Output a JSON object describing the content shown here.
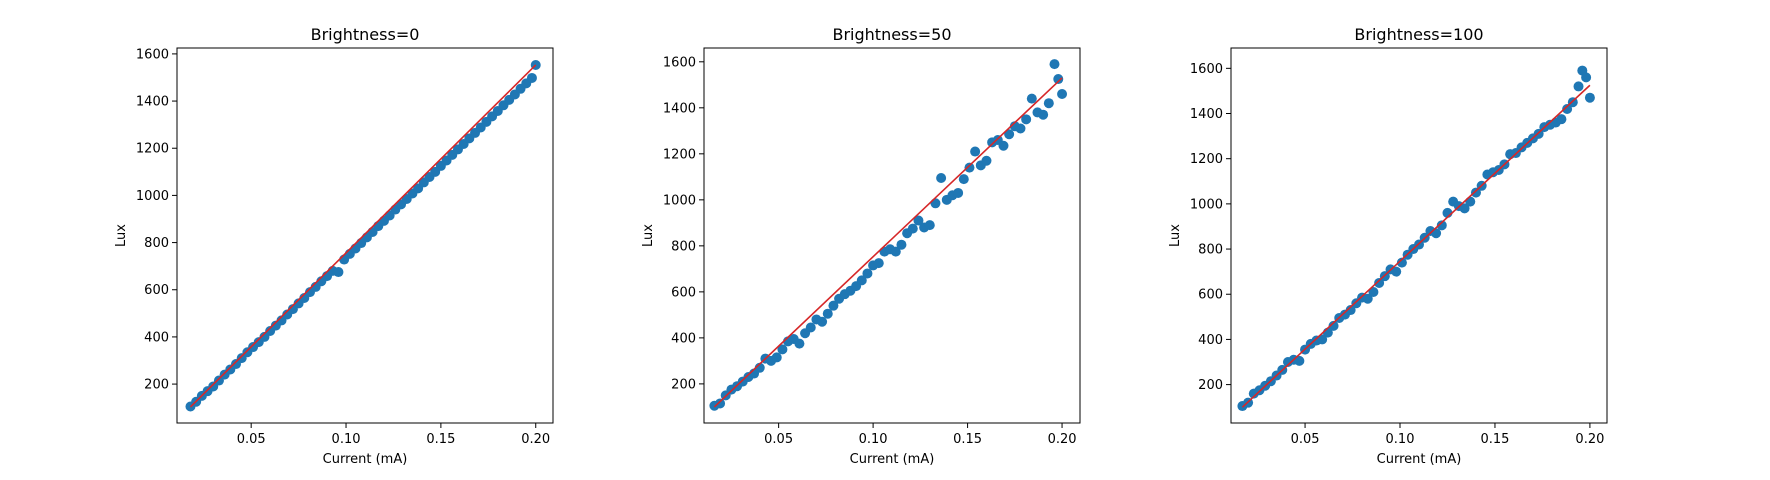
{
  "chart_data": [
    {
      "type": "scatter",
      "title": "Brightness=0",
      "xlabel": "Current (mA)",
      "ylabel": "Lux",
      "xlim": [
        0.0109,
        0.2091
      ],
      "ylim": [
        35,
        1625
      ],
      "xticks": [
        0.05,
        0.1,
        0.15,
        0.2
      ],
      "xtick_labels": [
        "0.05",
        "0.10",
        "0.15",
        "0.20"
      ],
      "yticks": [
        200,
        400,
        600,
        800,
        1000,
        1200,
        1400,
        1600
      ],
      "ytick_labels": [
        "200",
        "400",
        "600",
        "800",
        "1000",
        "1200",
        "1400",
        "1600"
      ],
      "fit_line": {
        "color": "#d62728",
        "x": [
          0.018,
          0.2
        ],
        "y": [
          103,
          1553
        ]
      },
      "series": [
        {
          "name": "measurements",
          "color": "#1f77b4",
          "x": [
            0.018,
            0.021,
            0.024,
            0.027,
            0.03,
            0.033,
            0.036,
            0.039,
            0.042,
            0.045,
            0.048,
            0.051,
            0.054,
            0.057,
            0.06,
            0.063,
            0.066,
            0.069,
            0.072,
            0.075,
            0.078,
            0.081,
            0.084,
            0.087,
            0.09,
            0.093,
            0.096,
            0.099,
            0.102,
            0.105,
            0.108,
            0.111,
            0.114,
            0.117,
            0.12,
            0.123,
            0.126,
            0.129,
            0.132,
            0.135,
            0.138,
            0.141,
            0.144,
            0.147,
            0.15,
            0.153,
            0.156,
            0.159,
            0.162,
            0.165,
            0.168,
            0.171,
            0.174,
            0.177,
            0.18,
            0.183,
            0.186,
            0.189,
            0.192,
            0.195,
            0.198,
            0.2
          ],
          "y": [
            105,
            125,
            150,
            170,
            190,
            215,
            240,
            262,
            285,
            310,
            335,
            357,
            378,
            400,
            425,
            448,
            470,
            495,
            518,
            542,
            565,
            590,
            612,
            636,
            658,
            680,
            675,
            728,
            752,
            775,
            798,
            822,
            845,
            870,
            892,
            915,
            940,
            962,
            985,
            1008,
            1030,
            1055,
            1078,
            1100,
            1125,
            1148,
            1172,
            1195,
            1218,
            1242,
            1265,
            1288,
            1312,
            1335,
            1358,
            1382,
            1405,
            1428,
            1452,
            1475,
            1498,
            1553
          ]
        }
      ]
    },
    {
      "type": "scatter",
      "title": "Brightness=50",
      "xlabel": "Current (mA)",
      "ylabel": "Lux",
      "xlim": [
        0.0105,
        0.2095
      ],
      "ylim": [
        30,
        1660
      ],
      "xticks": [
        0.05,
        0.1,
        0.15,
        0.2
      ],
      "xtick_labels": [
        "0.05",
        "0.10",
        "0.15",
        "0.20"
      ],
      "yticks": [
        200,
        400,
        600,
        800,
        1000,
        1200,
        1400,
        1600
      ],
      "ytick_labels": [
        "200",
        "400",
        "600",
        "800",
        "1000",
        "1200",
        "1400",
        "1600"
      ],
      "fit_line": {
        "color": "#d62728",
        "x": [
          0.016,
          0.2
        ],
        "y": [
          100,
          1530
        ]
      },
      "series": [
        {
          "name": "measurements",
          "color": "#1f77b4",
          "x": [
            0.016,
            0.019,
            0.022,
            0.025,
            0.028,
            0.031,
            0.034,
            0.037,
            0.04,
            0.043,
            0.046,
            0.049,
            0.052,
            0.055,
            0.058,
            0.061,
            0.064,
            0.067,
            0.07,
            0.073,
            0.076,
            0.079,
            0.082,
            0.085,
            0.088,
            0.091,
            0.094,
            0.097,
            0.1,
            0.103,
            0.106,
            0.109,
            0.112,
            0.115,
            0.118,
            0.121,
            0.124,
            0.127,
            0.13,
            0.133,
            0.136,
            0.139,
            0.142,
            0.145,
            0.148,
            0.151,
            0.154,
            0.157,
            0.16,
            0.163,
            0.166,
            0.169,
            0.172,
            0.175,
            0.178,
            0.181,
            0.184,
            0.187,
            0.19,
            0.193,
            0.196,
            0.198,
            0.2
          ],
          "y": [
            105,
            115,
            150,
            175,
            190,
            210,
            230,
            245,
            270,
            310,
            300,
            315,
            350,
            385,
            395,
            375,
            420,
            445,
            480,
            470,
            505,
            540,
            570,
            590,
            605,
            625,
            650,
            680,
            715,
            725,
            775,
            785,
            775,
            805,
            855,
            875,
            910,
            880,
            890,
            985,
            1095,
            1000,
            1020,
            1030,
            1090,
            1140,
            1210,
            1150,
            1170,
            1250,
            1260,
            1235,
            1285,
            1320,
            1310,
            1350,
            1440,
            1380,
            1370,
            1420,
            1590,
            1525,
            1460
          ]
        }
      ]
    },
    {
      "type": "scatter",
      "title": "Brightness=100",
      "xlabel": "Current (mA)",
      "ylabel": "Lux",
      "xlim": [
        0.011,
        0.209
      ],
      "ylim": [
        30,
        1690
      ],
      "xticks": [
        0.05,
        0.1,
        0.15,
        0.2
      ],
      "xtick_labels": [
        "0.05",
        "0.10",
        "0.15",
        "0.20"
      ],
      "yticks": [
        200,
        400,
        600,
        800,
        1000,
        1200,
        1400,
        1600
      ],
      "ytick_labels": [
        "200",
        "400",
        "600",
        "800",
        "1000",
        "1200",
        "1400",
        "1600"
      ],
      "fit_line": {
        "color": "#d62728",
        "x": [
          0.017,
          0.2
        ],
        "y": [
          100,
          1525
        ]
      },
      "series": [
        {
          "name": "measurements",
          "color": "#1f77b4",
          "x": [
            0.017,
            0.02,
            0.023,
            0.026,
            0.029,
            0.032,
            0.035,
            0.038,
            0.041,
            0.044,
            0.047,
            0.05,
            0.053,
            0.056,
            0.059,
            0.062,
            0.065,
            0.068,
            0.071,
            0.074,
            0.077,
            0.08,
            0.083,
            0.086,
            0.089,
            0.092,
            0.095,
            0.098,
            0.101,
            0.104,
            0.107,
            0.11,
            0.113,
            0.116,
            0.119,
            0.122,
            0.125,
            0.128,
            0.131,
            0.134,
            0.137,
            0.14,
            0.143,
            0.146,
            0.149,
            0.152,
            0.155,
            0.158,
            0.161,
            0.164,
            0.167,
            0.17,
            0.173,
            0.176,
            0.179,
            0.182,
            0.185,
            0.188,
            0.191,
            0.194,
            0.196,
            0.198,
            0.2
          ],
          "y": [
            105,
            120,
            160,
            175,
            195,
            215,
            240,
            265,
            300,
            310,
            305,
            355,
            380,
            395,
            400,
            430,
            460,
            495,
            510,
            530,
            560,
            585,
            580,
            610,
            650,
            680,
            710,
            700,
            740,
            775,
            800,
            820,
            850,
            880,
            870,
            905,
            960,
            1010,
            990,
            980,
            1010,
            1050,
            1080,
            1130,
            1140,
            1150,
            1175,
            1220,
            1225,
            1250,
            1270,
            1290,
            1310,
            1340,
            1350,
            1360,
            1375,
            1420,
            1450,
            1520,
            1590,
            1560,
            1470
          ]
        }
      ]
    }
  ]
}
